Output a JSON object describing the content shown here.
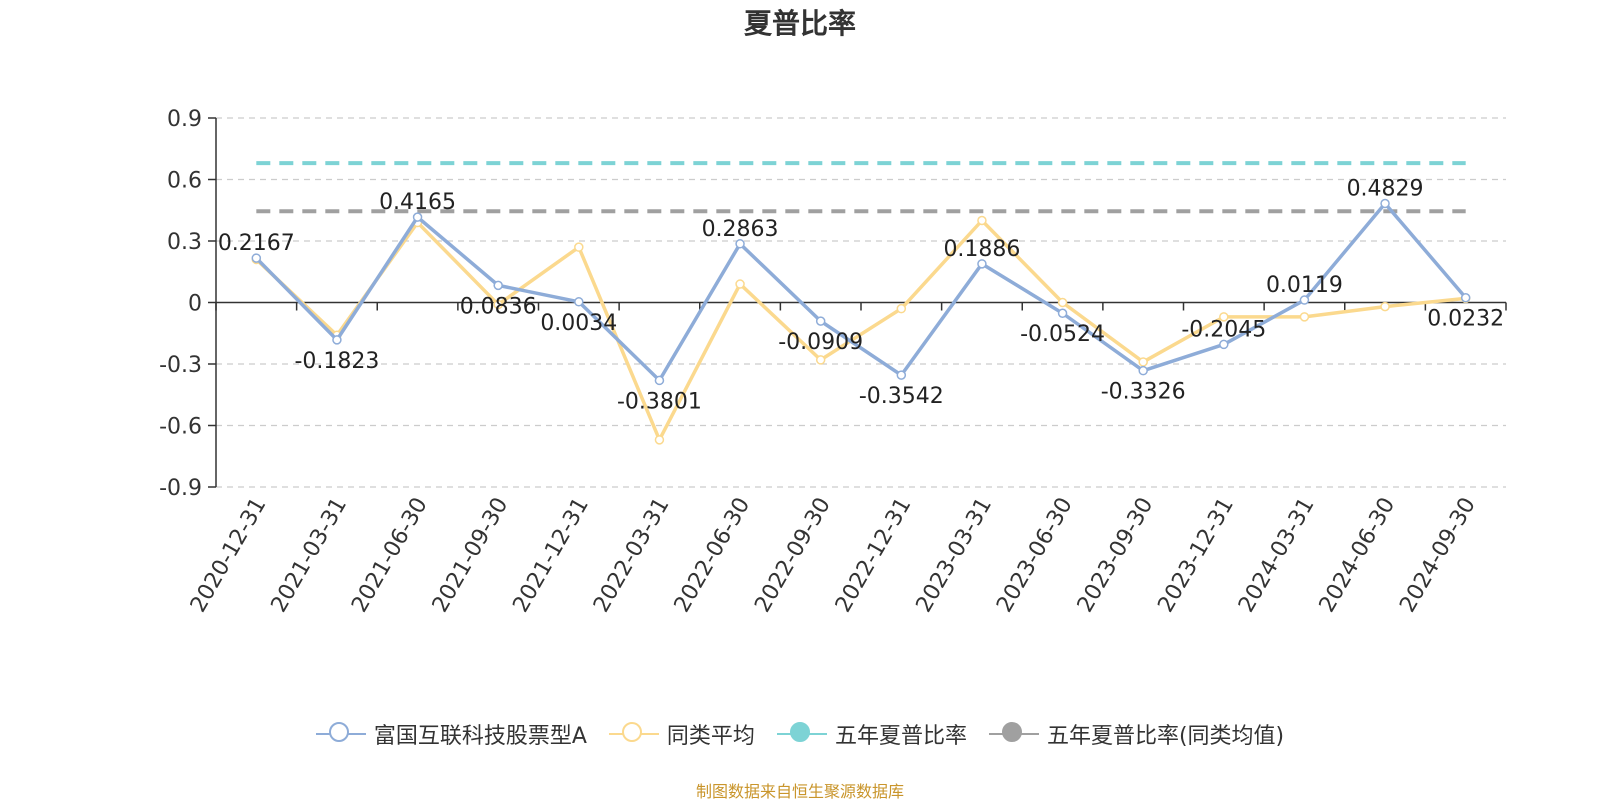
{
  "chart_data": {
    "type": "line",
    "title": "夏普比率",
    "categories": [
      "2020-12-31",
      "2021-03-31",
      "2021-06-30",
      "2021-09-30",
      "2021-12-31",
      "2022-03-31",
      "2022-06-30",
      "2022-09-30",
      "2022-12-31",
      "2023-03-31",
      "2023-06-30",
      "2023-09-30",
      "2023-12-31",
      "2024-03-31",
      "2024-06-30",
      "2024-09-30"
    ],
    "y_ticks": [
      "0.9",
      "0.6",
      "0.3",
      "0",
      "-0.3",
      "-0.6",
      "-0.9"
    ],
    "ylim": [
      -0.9,
      0.9
    ],
    "grid": true,
    "series": [
      {
        "name": "富国互联科技股票型A",
        "color": "#8eacd8",
        "values": [
          0.2167,
          -0.1823,
          0.4165,
          0.0836,
          0.0034,
          -0.3801,
          0.2863,
          -0.0909,
          -0.3542,
          0.1886,
          -0.0524,
          -0.3326,
          -0.2045,
          0.0119,
          0.4829,
          0.0232
        ],
        "labels": [
          "0.2167",
          "-0.1823",
          "0.4165",
          "0.0836",
          "0.0034",
          "-0.3801",
          "0.2863",
          "-0.0909",
          "-0.3542",
          "0.1886",
          "-0.0524",
          "-0.3326",
          "-0.2045",
          "0.0119",
          "0.4829",
          "0.0232"
        ]
      },
      {
        "name": "同类平均",
        "color": "#fbd98e",
        "values": [
          0.21,
          -0.16,
          0.39,
          -0.01,
          0.27,
          -0.67,
          0.09,
          -0.28,
          -0.03,
          0.4,
          0.0,
          -0.29,
          -0.07,
          -0.07,
          -0.02,
          0.02
        ]
      }
    ],
    "reference_lines": [
      {
        "name": "五年夏普比率",
        "color": "#7dd3d5",
        "value": 0.68
      },
      {
        "name": "五年夏普比率(同类均值)",
        "color": "#a0a0a0",
        "value": 0.445
      }
    ],
    "legend_position": "bottom"
  },
  "legend": [
    {
      "label": "富国互联科技股票型A",
      "color": "#8eacd8",
      "filled": false
    },
    {
      "label": "同类平均",
      "color": "#fbd98e",
      "filled": false
    },
    {
      "label": "五年夏普比率",
      "color": "#7dd3d5",
      "filled": true
    },
    {
      "label": "五年夏普比率(同类均值)",
      "color": "#a0a0a0",
      "filled": true
    }
  ],
  "source": "制图数据来自恒生聚源数据库"
}
